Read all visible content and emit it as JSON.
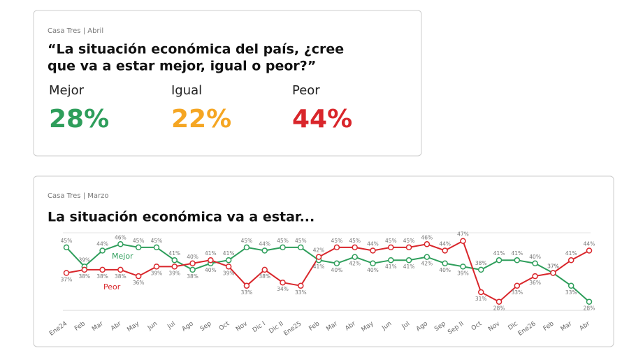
{
  "summary": {
    "source": "Casa Tres | Abril",
    "question_lines": [
      "“La situación económica del país, ¿cree",
      "que va a estar mejor, igual o peor?”"
    ],
    "items": [
      {
        "label": "Mejor",
        "value": "28%",
        "color": "#2e9e5b"
      },
      {
        "label": "Igual",
        "value": "22%",
        "color": "#f5a623"
      },
      {
        "label": "Peor",
        "value": "44%",
        "color": "#d9262b"
      }
    ]
  },
  "chart_data": {
    "type": "line",
    "source": "Casa Tres | Marzo",
    "title": "La situación económica va a estar...",
    "categories": [
      "Ene24",
      "Feb",
      "Mar",
      "Abr",
      "May",
      "Jun",
      "Jul",
      "Ago",
      "Sep",
      "Oct",
      "Nov",
      "Dic I",
      "Dic II",
      "Ene25",
      "Feb",
      "Mar",
      "Abr",
      "May",
      "Jun",
      "Jul",
      "Ago",
      "Sep",
      "Sep II",
      "Oct",
      "Nov",
      "Dic",
      "Ene26",
      "Feb",
      "Mar",
      "Abr"
    ],
    "ylim": [
      24,
      50
    ],
    "series": [
      {
        "name": "Mejor",
        "color": "#2e9e5b",
        "values": [
          45,
          39,
          44,
          46,
          45,
          45,
          41,
          38,
          40,
          41,
          45,
          44,
          45,
          45,
          41,
          40,
          42,
          40,
          41,
          41,
          42,
          40,
          39,
          38,
          41,
          41,
          40,
          37,
          33,
          28
        ],
        "value_labels": [
          "45%",
          "39%",
          "44%",
          "46%",
          "45%",
          "45%",
          "41%",
          "38%",
          "40%",
          "41%",
          "45%",
          "44%",
          "45%",
          "45%",
          "41%",
          "40%",
          "42%",
          "40%",
          "41%",
          "41%",
          "42%",
          "40%",
          "39%",
          "38%",
          "41%",
          "41%",
          "40%",
          "37%",
          "33%",
          "28%"
        ]
      },
      {
        "name": "Peor",
        "color": "#d9262b",
        "values": [
          37,
          38,
          38,
          38,
          36,
          39,
          39,
          40,
          41,
          39,
          33,
          38,
          34,
          33,
          42,
          45,
          45,
          44,
          45,
          45,
          46,
          44,
          47,
          31,
          28,
          33,
          36,
          37,
          41,
          44
        ],
        "value_labels": [
          "37%",
          "38%",
          "38%",
          "38%",
          "36%",
          "39%",
          "39%",
          "40%",
          "41%",
          "39%",
          "33%",
          "38%",
          "34%",
          "33%",
          "42%",
          "45%",
          "45%",
          "44%",
          "45%",
          "45%",
          "46%",
          "44%",
          "47%",
          "31%",
          "28%",
          "33%",
          "36%",
          "37%",
          "41%",
          "44%"
        ]
      }
    ]
  }
}
